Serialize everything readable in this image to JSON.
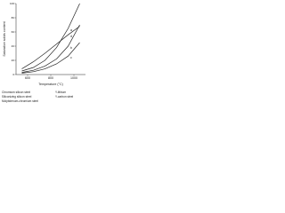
{
  "chart_data": {
    "type": "line",
    "y_label": "Saturation solids content",
    "x_label": "Temperature (°C)",
    "x": [
      550,
      650,
      750,
      850,
      950,
      1050
    ],
    "series": [
      {
        "name": "a",
        "color": "#222222",
        "values": [
          5,
          10,
          20,
          38,
          65,
          100
        ]
      },
      {
        "name": "b",
        "color": "#222222",
        "values": [
          3,
          6,
          12,
          22,
          40,
          70
        ]
      },
      {
        "name": "c",
        "color": "#222222",
        "values": [
          2,
          4,
          8,
          15,
          26,
          45
        ]
      },
      {
        "name": "d",
        "color": "#222222",
        "values": [
          8,
          18,
          30,
          43,
          56,
          68
        ]
      }
    ],
    "xlim": [
      500,
      1100
    ],
    "xticks": [
      600,
      800,
      1000
    ],
    "ylim": [
      0,
      100
    ],
    "yticks": [
      0,
      20,
      40,
      60,
      80,
      100
    ],
    "notes_left": [
      "Chromium silicon steel",
      "Siliconizing silicon steel",
      "Molybdenum-chromium steel"
    ],
    "notes_right": [
      "Y-lithium",
      "Y-carbon steel"
    ]
  }
}
